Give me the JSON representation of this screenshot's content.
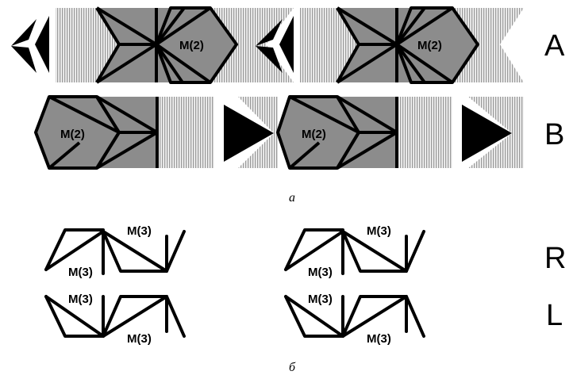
{
  "rows": {
    "A": "A",
    "B": "B",
    "R": "R",
    "L": "L"
  },
  "captions": {
    "a": "а",
    "b": "б"
  },
  "labels": {
    "m2": "M(2)",
    "m3": "M(3)"
  },
  "colors": {
    "gray": "#8c8c8c",
    "hatch": "#c8c8c8",
    "black": "#000000",
    "white": "#ffffff"
  }
}
